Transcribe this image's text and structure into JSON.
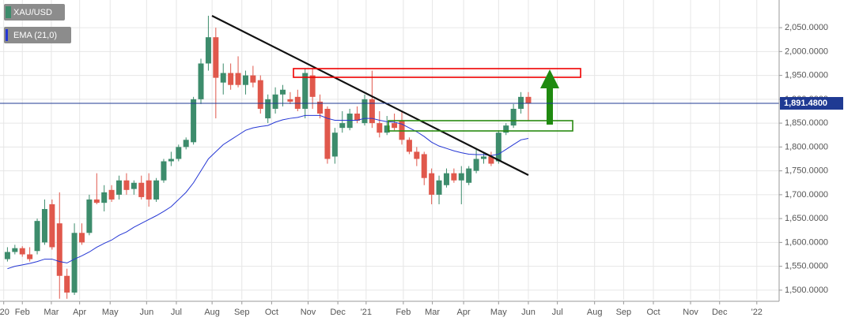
{
  "chart_data": {
    "type": "candlestick",
    "xlim": [
      0,
      104.7
    ],
    "xticks": [
      {
        "value": 0.5,
        "label": "'20"
      },
      {
        "value": 3.0,
        "label": "Feb"
      },
      {
        "value": 6.9,
        "label": "Mar"
      },
      {
        "value": 10.7,
        "label": "Apr"
      },
      {
        "value": 14.8,
        "label": "May"
      },
      {
        "value": 19.7,
        "label": "Jun"
      },
      {
        "value": 23.7,
        "label": "Jul"
      },
      {
        "value": 28.5,
        "label": "Aug"
      },
      {
        "value": 32.5,
        "label": "Sep"
      },
      {
        "value": 36.5,
        "label": "Oct"
      },
      {
        "value": 41.4,
        "label": "Nov"
      },
      {
        "value": 45.4,
        "label": "Dec"
      },
      {
        "value": 49.2,
        "label": "'21"
      },
      {
        "value": 54.2,
        "label": "Feb"
      },
      {
        "value": 58.1,
        "label": "Mar"
      },
      {
        "value": 62.3,
        "label": "Apr"
      },
      {
        "value": 67.0,
        "label": "May"
      },
      {
        "value": 71.0,
        "label": "Jun"
      },
      {
        "value": 74.9,
        "label": "Jul"
      },
      {
        "value": 79.9,
        "label": "Aug"
      },
      {
        "value": 83.8,
        "label": "Sep"
      },
      {
        "value": 87.8,
        "label": "Oct"
      },
      {
        "value": 92.8,
        "label": "Nov"
      },
      {
        "value": 96.7,
        "label": "Dec"
      },
      {
        "value": 101.7,
        "label": "'22"
      }
    ],
    "ylim": [
      1480,
      2108
    ],
    "yticks": [
      {
        "value": 1500,
        "label": "1,500.0000"
      },
      {
        "value": 1550,
        "label": "1,550.0000"
      },
      {
        "value": 1600,
        "label": "1,600.0000"
      },
      {
        "value": 1650,
        "label": "1,650.0000"
      },
      {
        "value": 1700,
        "label": "1,700.0000"
      },
      {
        "value": 1750,
        "label": "1,750.0000"
      },
      {
        "value": 1800,
        "label": "1,800.0000"
      },
      {
        "value": 1850,
        "label": "1,850.0000"
      },
      {
        "value": 1900,
        "label": "1,900.0000"
      },
      {
        "value": 1950,
        "label": "1,950.0000"
      },
      {
        "value": 2000,
        "label": "2,000.0000"
      },
      {
        "value": 2050,
        "label": "2,050.0000"
      }
    ],
    "grid": true,
    "last_price": {
      "value": 1891.48,
      "label": "1,891.4800"
    },
    "last_price_color": "#1f3a93",
    "x": [
      1,
      2,
      3,
      4,
      5,
      6,
      7,
      8,
      9,
      10,
      11,
      12,
      13,
      14,
      15,
      16,
      17,
      18,
      19,
      20,
      21,
      22,
      23,
      24,
      25,
      26,
      27,
      28,
      29,
      30,
      31,
      32,
      33,
      34,
      35,
      36,
      37,
      38,
      39,
      40,
      41,
      42,
      43,
      44,
      45,
      46,
      47,
      48,
      49,
      50,
      51,
      52,
      53,
      54,
      55,
      56,
      57,
      58,
      59,
      60,
      61,
      62,
      63,
      64,
      65,
      66,
      67,
      68,
      69,
      70,
      71
    ],
    "series": [
      {
        "name": "XAU/USD",
        "color": "#3d8c6c",
        "color_up": "#3d8c6c",
        "color_down": "#e0584c",
        "open": [
          1565,
          1580,
          1588,
          1575,
          1582,
          1600,
          1680,
          1640,
          1530,
          1495,
          1620,
          1620,
          1690,
          1683,
          1710,
          1700,
          1730,
          1712,
          1725,
          1730,
          1690,
          1730,
          1770,
          1775,
          1800,
          1810,
          1900,
          1975,
          2030,
          1935,
          1955,
          1955,
          1930,
          1950,
          1940,
          1860,
          1880,
          1910,
          1900,
          1905,
          1880,
          1950,
          1895,
          1880,
          1780,
          1840,
          1840,
          1870,
          1850,
          1900,
          1850,
          1830,
          1850,
          1855,
          1815,
          1790,
          1785,
          1745,
          1700,
          1720,
          1745,
          1730,
          1725,
          1750,
          1775,
          1780,
          1770,
          1830,
          1845,
          1880,
          1905
        ],
        "high": [
          1590,
          1595,
          1592,
          1590,
          1650,
          1690,
          1690,
          1705,
          1545,
          1640,
          1640,
          1700,
          1745,
          1720,
          1720,
          1740,
          1745,
          1730,
          1740,
          1745,
          1735,
          1775,
          1790,
          1805,
          1820,
          1905,
          1985,
          2075,
          2050,
          1975,
          1975,
          1990,
          1960,
          1970,
          1950,
          1910,
          1925,
          1930,
          1915,
          1920,
          1965,
          1965,
          1910,
          1885,
          1840,
          1875,
          1880,
          1885,
          1910,
          1960,
          1875,
          1865,
          1870,
          1875,
          1820,
          1800,
          1790,
          1755,
          1740,
          1755,
          1755,
          1760,
          1760,
          1795,
          1790,
          1790,
          1835,
          1850,
          1890,
          1915,
          1915
        ],
        "low": [
          1560,
          1575,
          1570,
          1560,
          1575,
          1595,
          1585,
          1482,
          1482,
          1490,
          1595,
          1615,
          1680,
          1665,
          1685,
          1690,
          1700,
          1700,
          1690,
          1675,
          1685,
          1725,
          1760,
          1770,
          1795,
          1805,
          1890,
          1960,
          1860,
          1910,
          1920,
          1925,
          1910,
          1925,
          1870,
          1850,
          1870,
          1885,
          1890,
          1875,
          1860,
          1880,
          1860,
          1765,
          1765,
          1830,
          1835,
          1850,
          1845,
          1840,
          1820,
          1825,
          1835,
          1805,
          1785,
          1760,
          1720,
          1680,
          1680,
          1715,
          1725,
          1680,
          1720,
          1745,
          1765,
          1760,
          1765,
          1825,
          1840,
          1870,
          1855
        ],
        "close": [
          1580,
          1588,
          1575,
          1565,
          1645,
          1670,
          1590,
          1530,
          1495,
          1620,
          1600,
          1690,
          1683,
          1705,
          1690,
          1730,
          1710,
          1725,
          1695,
          1690,
          1730,
          1770,
          1775,
          1800,
          1815,
          1900,
          1975,
          2030,
          1945,
          1955,
          1930,
          1930,
          1950,
          1935,
          1880,
          1900,
          1910,
          1920,
          1895,
          1880,
          1955,
          1905,
          1870,
          1775,
          1830,
          1850,
          1870,
          1855,
          1900,
          1850,
          1830,
          1845,
          1840,
          1815,
          1790,
          1775,
          1735,
          1700,
          1730,
          1745,
          1730,
          1745,
          1755,
          1775,
          1780,
          1765,
          1830,
          1845,
          1880,
          1905,
          1891.48
        ]
      },
      {
        "name": "EMA (21,0)",
        "color": "#2436d4",
        "values": [
          1545,
          1550,
          1553,
          1556,
          1560,
          1565,
          1565,
          1560,
          1557,
          1565,
          1572,
          1580,
          1590,
          1598,
          1605,
          1615,
          1622,
          1632,
          1640,
          1648,
          1656,
          1665,
          1675,
          1690,
          1705,
          1725,
          1750,
          1775,
          1790,
          1805,
          1815,
          1825,
          1835,
          1840,
          1843,
          1845,
          1852,
          1857,
          1860,
          1862,
          1866,
          1866,
          1866,
          1860,
          1856,
          1856,
          1856,
          1856,
          1860,
          1860,
          1856,
          1853,
          1852,
          1848,
          1840,
          1832,
          1822,
          1810,
          1802,
          1797,
          1792,
          1788,
          1785,
          1784,
          1784,
          1782,
          1785,
          1795,
          1805,
          1815,
          1818
        ]
      }
    ]
  }
}
